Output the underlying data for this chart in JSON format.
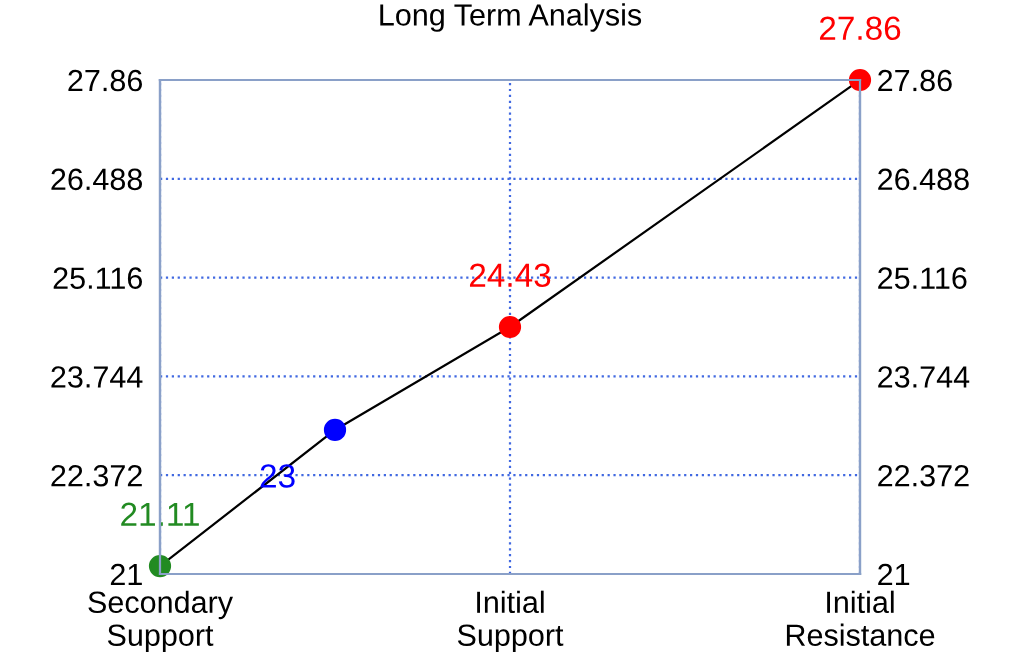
{
  "chart_data": {
    "type": "line",
    "title": "Long Term Analysis",
    "categories": [
      "Secondary\nSupport",
      null,
      "Initial\nSupport",
      null,
      "Initial\nResistance"
    ],
    "series": [
      {
        "color": "#000000",
        "colors": [
          "#228b22",
          "#0000ff",
          "#ff0000",
          null,
          "#ff0000"
        ],
        "values": [
          21.11,
          23,
          24.43,
          null,
          27.86
        ],
        "value_labels": [
          "21.11",
          "23",
          "24.43",
          null,
          "27.86"
        ]
      }
    ],
    "marker": "circle",
    "line_style": "solid",
    "grid": true,
    "ylim": [
      21,
      27.86
    ],
    "yticks": [
      21,
      22.372,
      23.744,
      25.116,
      26.488,
      27.86
    ],
    "y2lim": [
      21,
      27.86
    ],
    "y2ticks": [
      21,
      22.372,
      23.744,
      25.116,
      26.488,
      27.86
    ]
  }
}
